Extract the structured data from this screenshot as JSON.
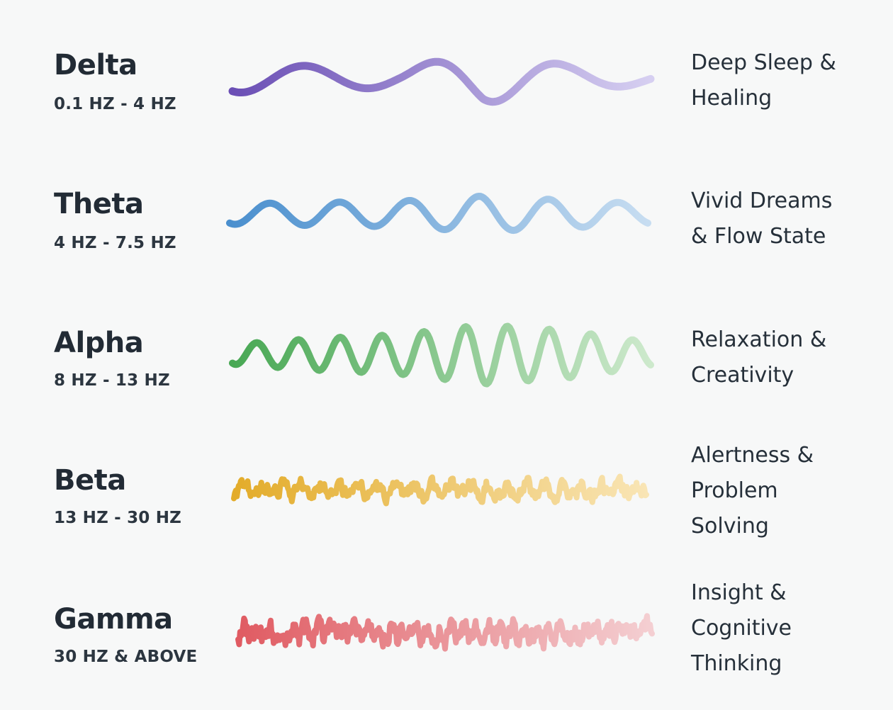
{
  "bands": [
    {
      "name": "Delta",
      "range": "0.1 HZ - 4 HZ",
      "description": "Deep Sleep & Healing",
      "description_lines": [
        "Deep Sleep &",
        "Healing"
      ],
      "color_start": "#6b4fb5",
      "color_end": "#d6cff1",
      "wave": {
        "cycles": 3.3,
        "amplitude": 1.0,
        "noise": 0,
        "thickness": 11
      }
    },
    {
      "name": "Theta",
      "range": "4 HZ - 7.5 HZ",
      "description": "Vivid Dreams & Flow State",
      "description_lines": [
        "Vivid Dreams",
        "& Flow State"
      ],
      "color_start": "#4a8fce",
      "color_end": "#c7ddf1",
      "wave": {
        "cycles": 6,
        "amplitude": 1.0,
        "noise": 0,
        "thickness": 10
      }
    },
    {
      "name": "Alpha",
      "range": "8 HZ - 13 HZ",
      "description": "Relaxation & Creativity",
      "description_lines": [
        "Relaxation &",
        "Creativity"
      ],
      "color_start": "#48a854",
      "color_end": "#cde9cc",
      "wave": {
        "cycles": 10,
        "amplitude": 1.0,
        "noise": 0,
        "thickness": 10
      }
    },
    {
      "name": "Beta",
      "range": "13 HZ - 30 HZ",
      "description": "Alertness & Problem Solving",
      "description_lines": [
        "Alertness &",
        "Problem",
        "Solving"
      ],
      "color_start": "#e3ac2a",
      "color_end": "#f9e5b5",
      "wave": {
        "cycles": 22,
        "amplitude": 1.0,
        "noise": 0.55,
        "thickness": 8
      }
    },
    {
      "name": "Gamma",
      "range": "30 HZ & ABOVE",
      "description": "Insight & Cognitive Thinking",
      "description_lines": [
        "Insight &",
        "Cognitive",
        "Thinking"
      ],
      "color_start": "#e05b62",
      "color_end": "#f4cfd2",
      "wave": {
        "cycles": 34,
        "amplitude": 1.0,
        "noise": 0.7,
        "thickness": 8
      }
    }
  ]
}
